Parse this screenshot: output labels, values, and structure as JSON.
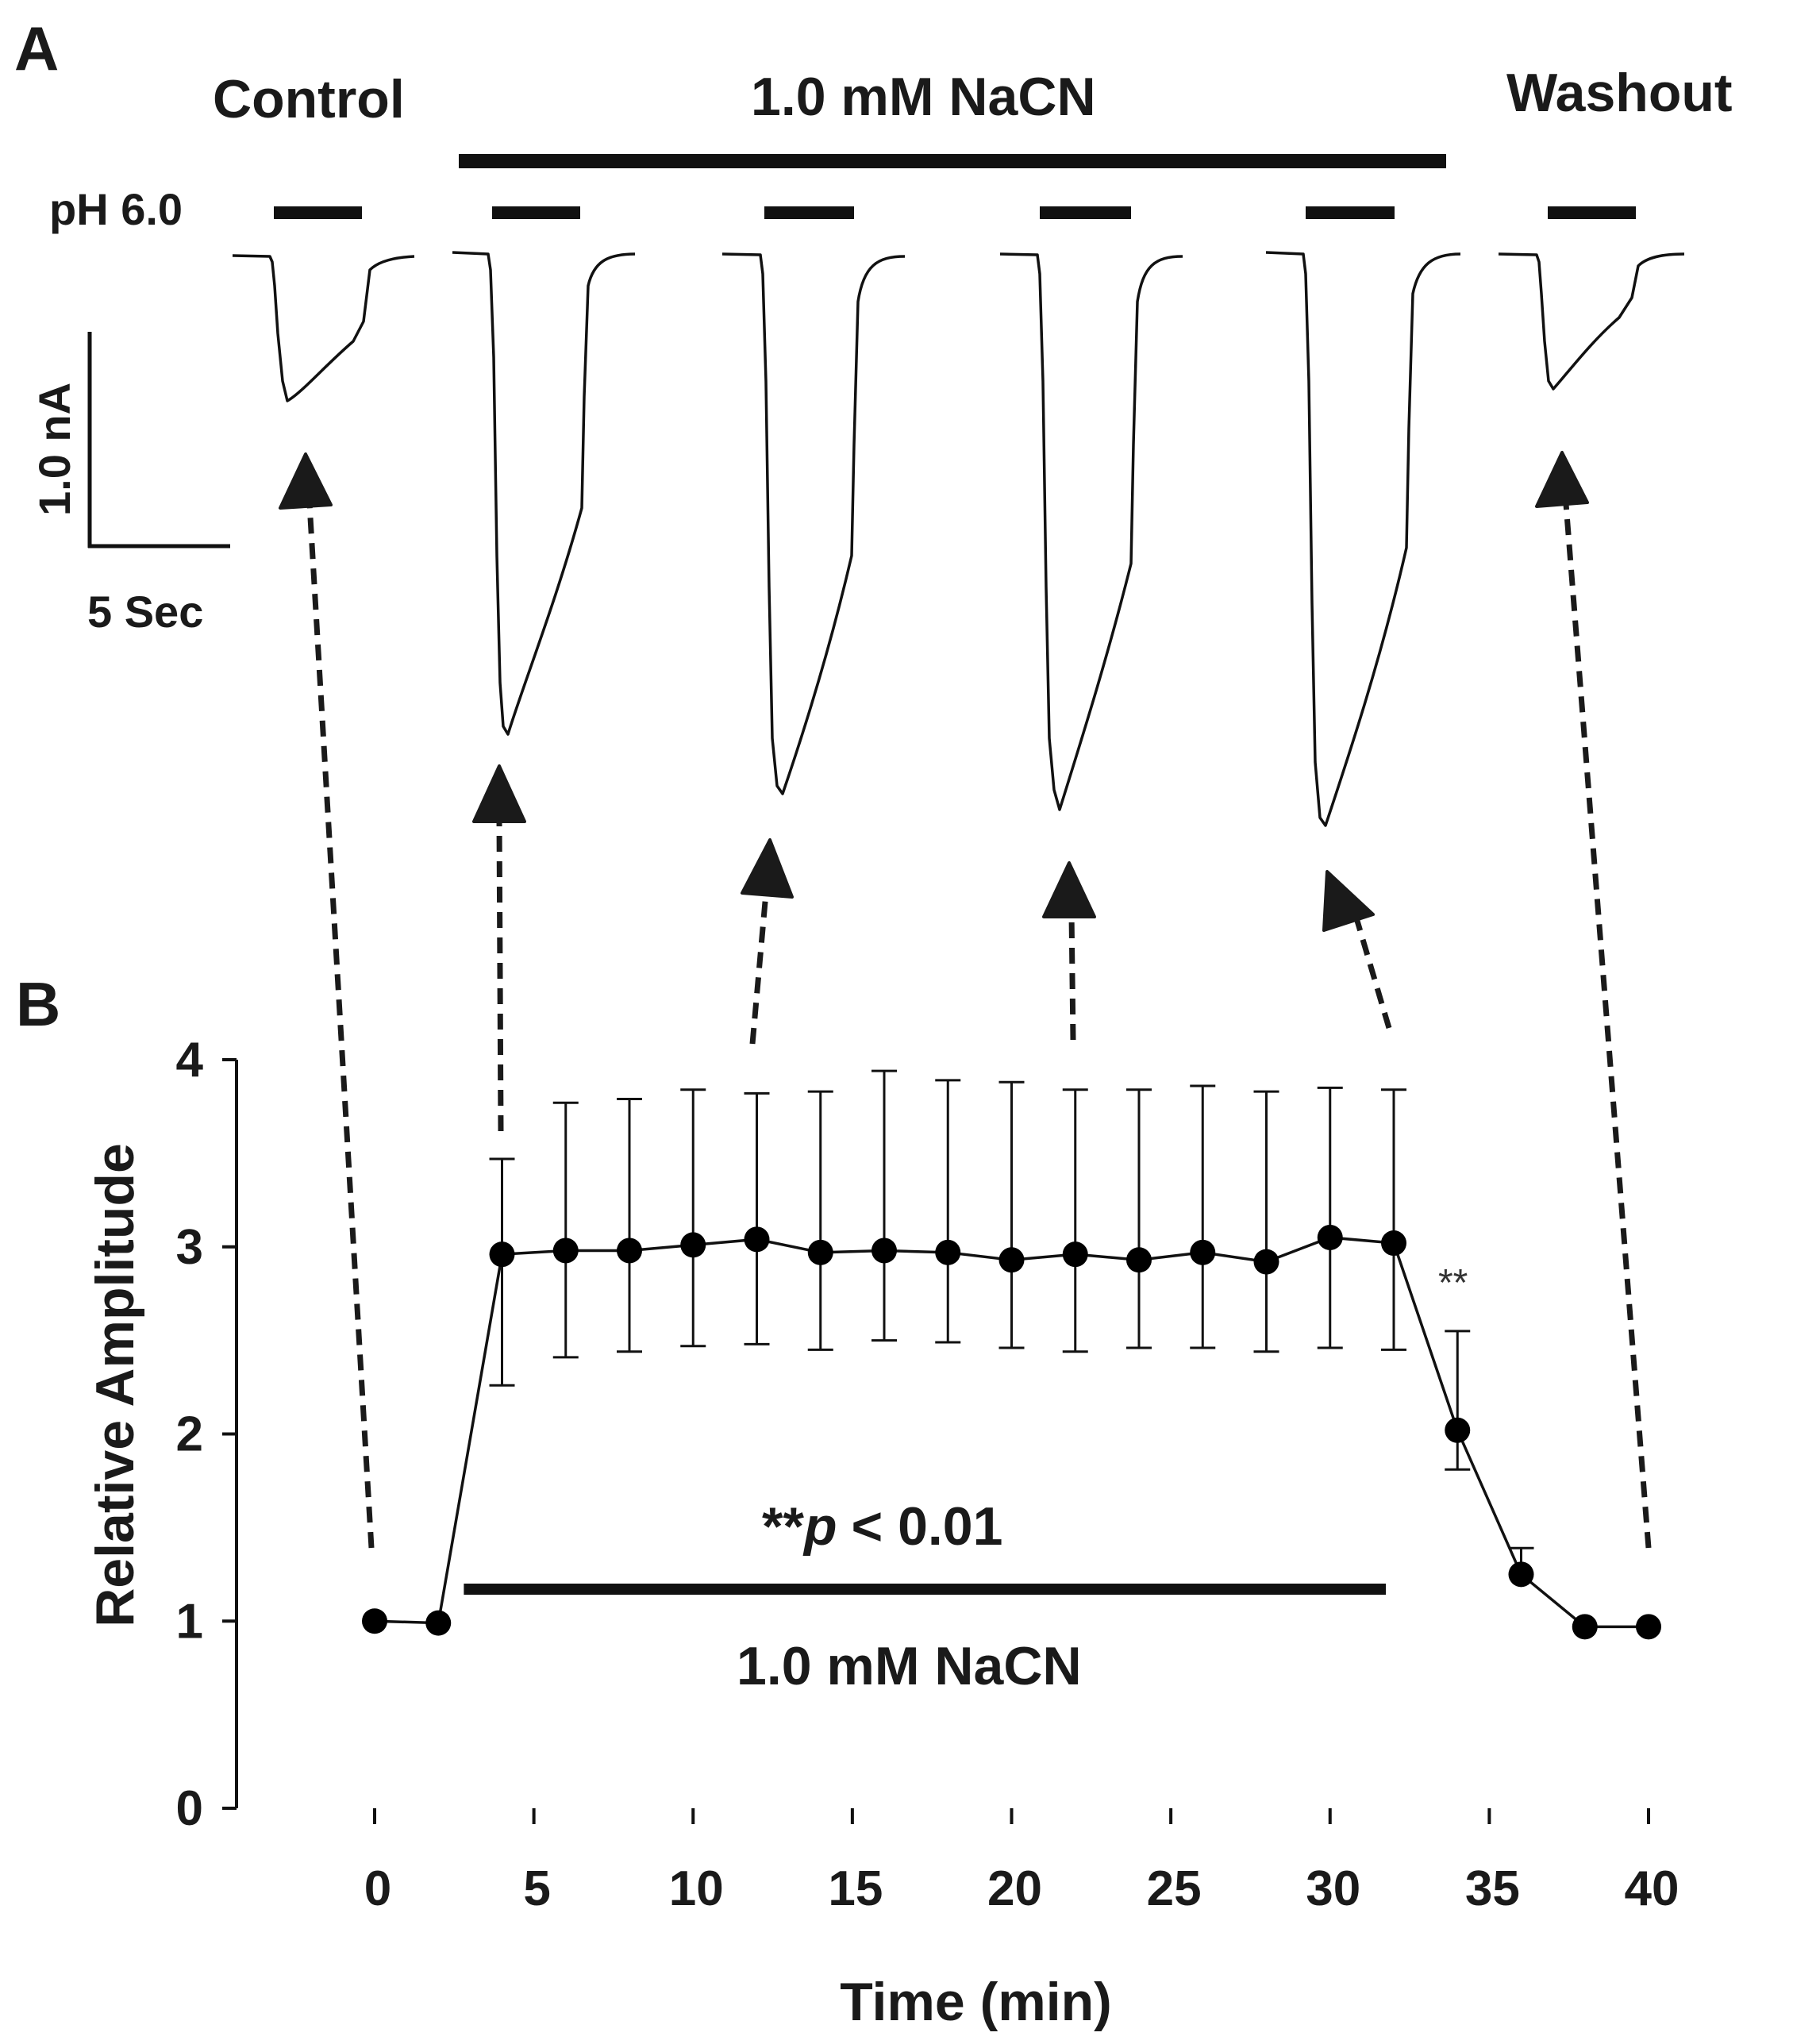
{
  "panel_a": {
    "label": "A",
    "conditions": {
      "control": "Control",
      "treatment": "1.0 mM NaCN",
      "washout": "Washout"
    },
    "stimulus_label": "pH 6.0",
    "scale_bar": {
      "current": "1.0 nA",
      "time": "5 Sec"
    }
  },
  "panel_b": {
    "label": "B",
    "significance": "**p < 0.01",
    "significance_stars": "**",
    "significance_rest": "< 0.01",
    "treatment_label": "1.0 mM NaCN",
    "point_marker": "**"
  },
  "chart_data": {
    "type": "line",
    "title": "",
    "xlabel": "Time (min)",
    "ylabel": "Relative Amplitude",
    "xlim": [
      0,
      40
    ],
    "ylim": [
      0,
      4
    ],
    "xticks": [
      0,
      5,
      10,
      15,
      20,
      25,
      30,
      35,
      40
    ],
    "yticks": [
      0,
      1,
      2,
      3,
      4
    ],
    "treatment_period": [
      3,
      32
    ],
    "series": [
      {
        "name": "Relative Amplitude",
        "x": [
          0,
          2,
          4,
          6,
          8,
          10,
          12,
          14,
          16,
          18,
          20,
          22,
          24,
          26,
          28,
          30,
          32,
          34,
          36,
          38,
          40
        ],
        "y": [
          1.0,
          0.99,
          2.96,
          2.98,
          2.98,
          3.01,
          3.04,
          2.97,
          2.98,
          2.97,
          2.93,
          2.96,
          2.93,
          2.97,
          2.92,
          3.05,
          3.02,
          2.02,
          1.25,
          0.97,
          0.97
        ],
        "err_upper": [
          null,
          null,
          3.47,
          3.77,
          3.79,
          3.84,
          3.82,
          3.83,
          3.94,
          3.89,
          3.88,
          3.84,
          3.84,
          3.86,
          3.83,
          3.85,
          3.84,
          2.55,
          1.39,
          null,
          null
        ],
        "err_lower": [
          null,
          null,
          2.26,
          2.41,
          2.44,
          2.47,
          2.48,
          2.45,
          2.5,
          2.49,
          2.46,
          2.44,
          2.46,
          2.46,
          2.44,
          2.46,
          2.45,
          1.81,
          null,
          null,
          null
        ]
      }
    ]
  }
}
